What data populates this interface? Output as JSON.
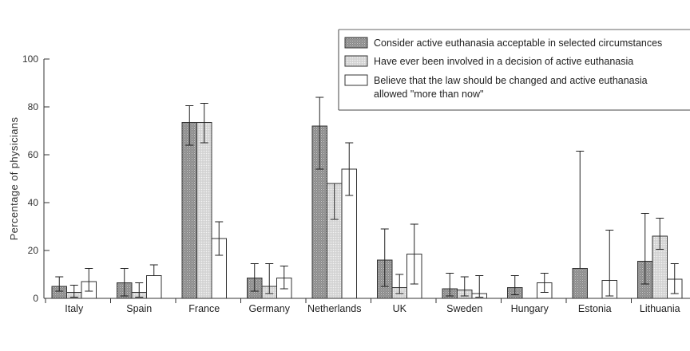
{
  "chart_data": {
    "type": "bar",
    "ylabel": "Percentage of physicians",
    "ylim": [
      0,
      100
    ],
    "yticks": [
      0,
      20,
      40,
      60,
      80,
      100
    ],
    "categories": [
      "Italy",
      "Spain",
      "France",
      "Germany",
      "Netherlands",
      "UK",
      "Sweden",
      "Hungary",
      "Estonia",
      "Lithuania"
    ],
    "series": [
      {
        "name": "Consider active euthanasia acceptable in selected circumstances",
        "fill": "dark-hatch",
        "values": [
          5,
          6.5,
          73.5,
          8.5,
          72,
          16,
          4,
          4.5,
          12.5,
          15.5
        ],
        "err_low": [
          3,
          1,
          64,
          3,
          54,
          5,
          1,
          1.5,
          null,
          6
        ],
        "err_high": [
          9,
          12.5,
          80.5,
          14.5,
          84,
          29,
          10.5,
          9.5,
          61.5,
          35.5
        ]
      },
      {
        "name": "Have ever been involved in a decision of active euthanasia",
        "fill": "light-hatch",
        "values": [
          2.5,
          2.5,
          73.5,
          5,
          48,
          4.5,
          3.5,
          null,
          null,
          26
        ],
        "err_low": [
          0.5,
          0.5,
          65,
          2,
          33,
          2,
          1,
          null,
          null,
          20.5
        ],
        "err_high": [
          5.5,
          6.5,
          81.5,
          14.5,
          null,
          10,
          9,
          null,
          null,
          33.5
        ]
      },
      {
        "name": "Believe that the law should be changed and active euthanasia allowed \"more than now\"",
        "fill": "white",
        "values": [
          7,
          9.5,
          25,
          8.5,
          54,
          18.5,
          2,
          6.5,
          7.5,
          8
        ],
        "err_low": [
          3,
          null,
          18,
          4,
          43,
          6,
          0.5,
          2.5,
          1,
          2
        ],
        "err_high": [
          12.5,
          14,
          32,
          13.5,
          65,
          31,
          9.5,
          10.5,
          28.5,
          14.5
        ]
      }
    ],
    "legend_position": "top-right",
    "grid": false
  }
}
